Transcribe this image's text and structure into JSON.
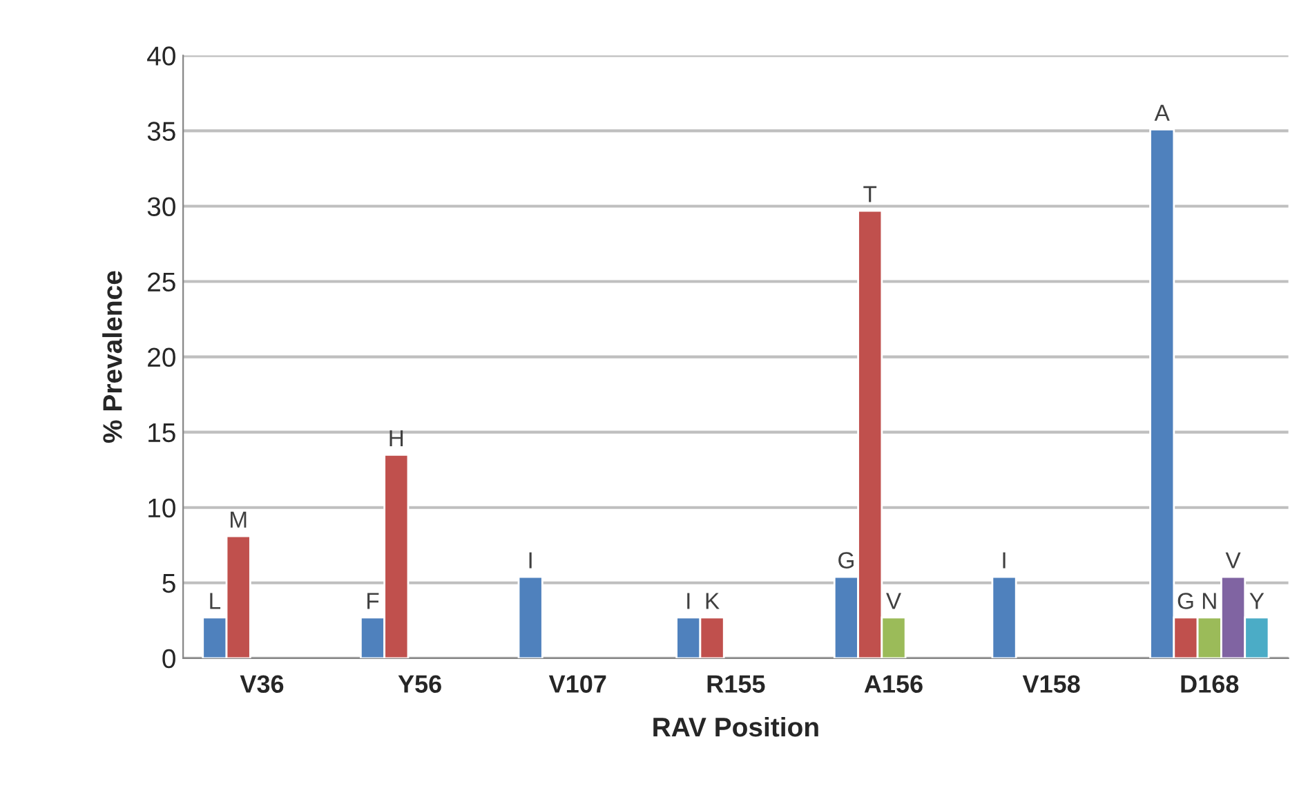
{
  "chart_data": {
    "type": "bar",
    "xlabel": "RAV Position",
    "ylabel": "% Prevalence",
    "categories": [
      "V36",
      "Y56",
      "V107",
      "R155",
      "A156",
      "V158",
      "D168"
    ],
    "series": [
      {
        "color": "#4f81bd",
        "values": [
          2.7,
          2.7,
          5.4,
          2.7,
          5.4,
          5.4,
          35.1
        ],
        "value_labels": [
          "L",
          "F",
          "I",
          "I",
          "G",
          "I",
          "A"
        ]
      },
      {
        "color": "#c0504d",
        "values": [
          8.1,
          13.5,
          null,
          2.7,
          29.7,
          null,
          2.7
        ],
        "value_labels": [
          "M",
          "H",
          null,
          "K",
          "T",
          null,
          "G"
        ]
      },
      {
        "color": "#9bbb59",
        "values": [
          null,
          null,
          null,
          null,
          2.7,
          null,
          2.7
        ],
        "value_labels": [
          null,
          null,
          null,
          null,
          "V",
          null,
          "N"
        ]
      },
      {
        "color": "#8064a2",
        "values": [
          null,
          null,
          null,
          null,
          null,
          null,
          5.4
        ],
        "value_labels": [
          null,
          null,
          null,
          null,
          null,
          null,
          "V"
        ]
      },
      {
        "color": "#4bacc6",
        "values": [
          null,
          null,
          null,
          null,
          null,
          null,
          2.7
        ],
        "value_labels": [
          null,
          null,
          null,
          null,
          null,
          null,
          "Y"
        ]
      }
    ],
    "ylim": [
      0,
      40
    ],
    "yticks": [
      0,
      5,
      10,
      15,
      20,
      25,
      30,
      35,
      40
    ],
    "grid": "y",
    "legend": false
  }
}
